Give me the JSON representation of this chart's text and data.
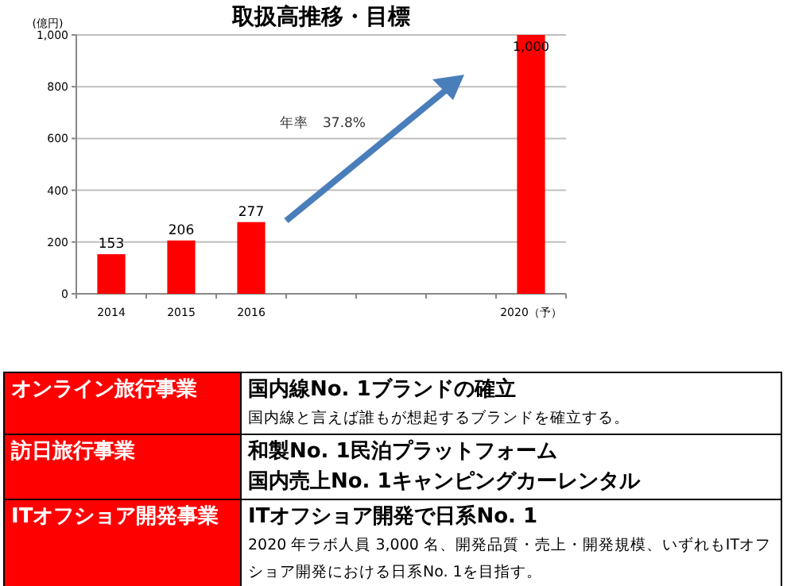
{
  "chart_data": [
    {
      "type": "bar",
      "title": "取扱高推移・目標",
      "ylabel": "(億円)",
      "categories": [
        "2014",
        "2015",
        "2016",
        null,
        null,
        null,
        "2020（予）"
      ],
      "values": [
        153,
        206,
        277,
        null,
        null,
        null,
        1000
      ],
      "color": "#ff0000",
      "value_labels": [
        "153",
        "206",
        "277",
        null,
        null,
        null,
        "1,000"
      ],
      "ylim": [
        0,
        1000
      ],
      "yticks": [
        0,
        200,
        400,
        600,
        800,
        {
          "value": 1000,
          "label": "1,000"
        }
      ],
      "grid": "y",
      "annotations": [
        "年率　37.8%"
      ]
    },
    {
      "type": "other",
      "y_categories": [
        "オンライン旅行事業",
        "訪日旅行事業",
        "ITオフショア開発事業"
      ],
      "colors": [
        "#ff0000",
        "#ff0000",
        "#ff0000"
      ],
      "cell_labels": [
        [
          "国内線No. 1ブランドの確立",
          "国内線と言えば誰もが想起するブランドを確立する。"
        ],
        [
          [
            "和製No. 1民泊プラットフォーム",
            "国内売上No. 1キャンピングカーレンタル"
          ],
          null
        ],
        [
          "ITオフショア開発で日系No. 1",
          "2020 年ラボ人員 3,000 名、開発品質・売上・開発規模、いずれもITオフショア開発における日系No. 1を目指す。"
        ]
      ]
    }
  ]
}
